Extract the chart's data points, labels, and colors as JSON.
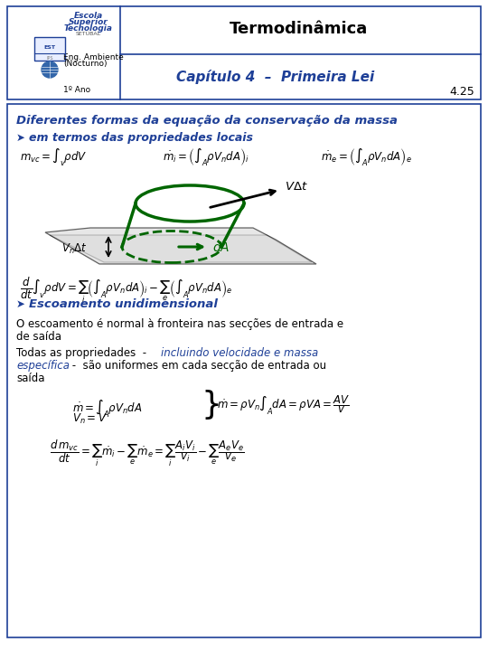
{
  "title": "Termodinâmica",
  "chapter": "Capítulo 4  –  Primeira Lei",
  "slide_num": "4.25",
  "dept": "Eng. Ambiente",
  "dept2": "(Nocturno)",
  "year": "1º Ano",
  "main_title": "Diferentes formas da equação da conservação da massa",
  "bullet1": "em termos das propriedades locais",
  "bullet2": "Escoamento unidimensional",
  "text1a": "O escoamento é normal à fronteira nas secções de entrada e",
  "text1b": "de saída",
  "text2pre": "Todas as propriedades  -  ",
  "text2blue": "incluindo velocidade e massa",
  "text2blue2": "específica",
  "text2post": " -  são uniformes em cada secção de entrada ou",
  "text2post2": "saída",
  "blue": "#1E3F97",
  "green": "#006600",
  "black": "#000000",
  "white": "#FFFFFF",
  "gray_plate": "#d8d8d8"
}
